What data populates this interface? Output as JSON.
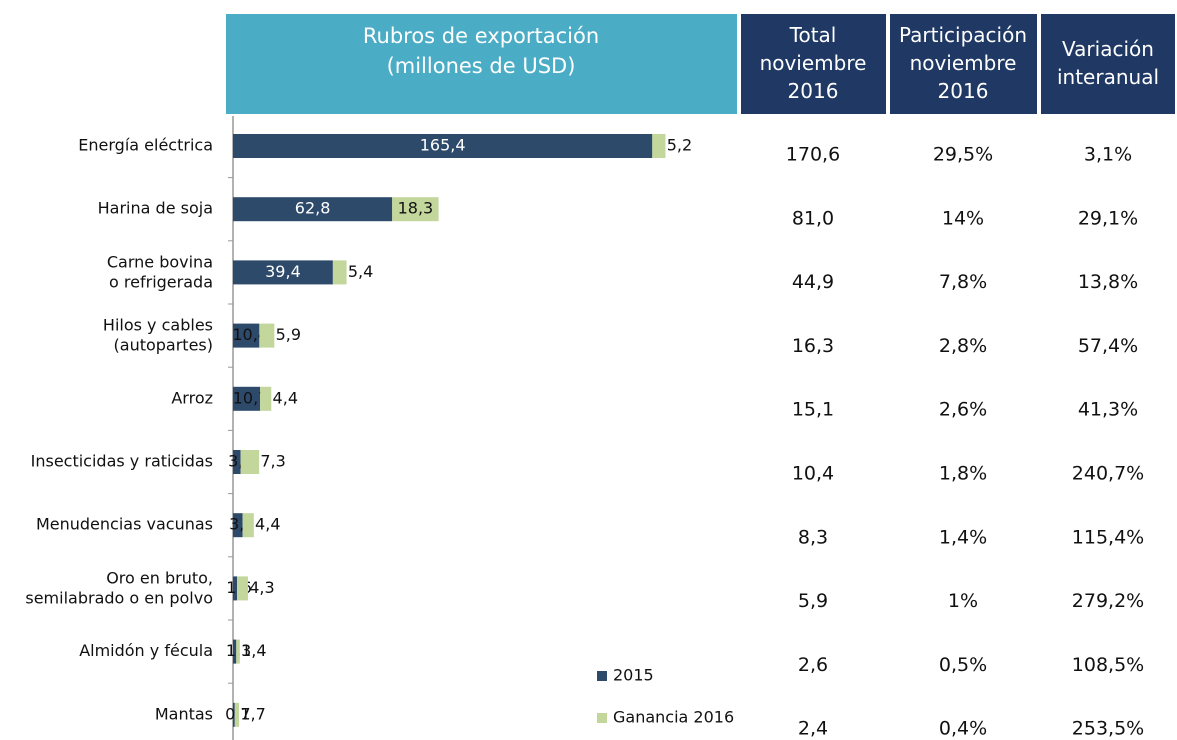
{
  "chart_data": {
    "type": "stacked-bar-horizontal",
    "title": "Rubros de exportación\n(millones de USD)",
    "categories": [
      "Energía eléctrica",
      "Harina de soja",
      "Carne bovina\no refrigerada",
      "Hilos y cables\n(autopartes)",
      "Arroz",
      "Insecticidas y raticidas",
      "Menudencias vacunas",
      "Oro en bruto,\nsemilabrado o en polvo",
      "Almidón y fécula",
      "Mantas"
    ],
    "series": [
      {
        "name": "2015",
        "color": "#2e4a6b",
        "values": [
          165.4,
          62.8,
          39.4,
          10.4,
          10.7,
          3.0,
          3.8,
          1.6,
          1.3,
          0.7
        ],
        "value_labels": [
          "165,4",
          "62,8",
          "39,4",
          "10,4",
          "10,7",
          "3,0",
          "3,8",
          "1,6",
          "1,3",
          "0,7"
        ]
      },
      {
        "name": "Ganancia 2016",
        "color": "#c3d69b",
        "values": [
          5.2,
          18.3,
          5.4,
          5.9,
          4.4,
          7.3,
          4.4,
          4.3,
          1.4,
          1.7
        ],
        "value_labels": [
          "5,2",
          "18,3",
          "5,4",
          "5,9",
          "4,4",
          "7,3",
          "4,4",
          "4,3",
          "1,4",
          "1,7"
        ]
      }
    ],
    "xlim": [
      0,
      200
    ],
    "legend": "bottom-right"
  },
  "table": {
    "header": [
      "Total\nnoviembre\n2016",
      "Participación\nnoviembre\n2016",
      "Variación\ninteranual"
    ],
    "rows": [
      [
        "170,6",
        "29,5%",
        "3,1%"
      ],
      [
        "81,0",
        "14%",
        "29,1%"
      ],
      [
        "44,9",
        "7,8%",
        "13,8%"
      ],
      [
        "16,3",
        "2,8%",
        "57,4%"
      ],
      [
        "15,1",
        "2,6%",
        "41,3%"
      ],
      [
        "10,4",
        "1,8%",
        "240,7%"
      ],
      [
        "8,3",
        "1,4%",
        "115,4%"
      ],
      [
        "5,9",
        "1%",
        "279,2%"
      ],
      [
        "2,6",
        "0,5%",
        "108,5%"
      ],
      [
        "2,4",
        "0,4%",
        "253,5%"
      ]
    ]
  }
}
